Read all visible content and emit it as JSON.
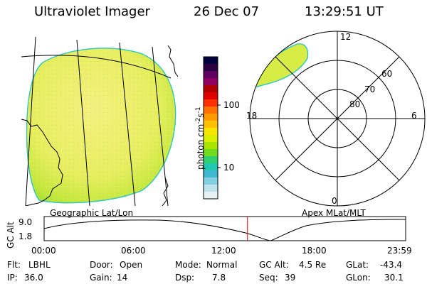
{
  "header": {
    "instrument": "Ultraviolet Imager",
    "date": "26 Dec 07",
    "time": "13:29:51 UT"
  },
  "colorbar": {
    "label": "photon cm",
    "label_sup1": "-2",
    "label_mid": "s",
    "label_sup2": "-1",
    "tick_high": "100",
    "tick_low": "10",
    "colors": [
      "#000040",
      "#2a0040",
      "#600060",
      "#900060",
      "#b00000",
      "#e00000",
      "#ff3000",
      "#ff7000",
      "#ff9a00",
      "#ffc000",
      "#f7e600",
      "#d9f000",
      "#a8e600",
      "#70dc20",
      "#30d070",
      "#20c8b0",
      "#40b8d0",
      "#80d0e0",
      "#c0e4ec",
      "#e8f2f4"
    ]
  },
  "panels": {
    "left_caption": "Geographic Lat/Lon",
    "right_caption": "Apex MLat/MLT",
    "mlt_labels": {
      "top": "12",
      "left": "18",
      "right": "6",
      "bottom": "0"
    },
    "mlat_labels": [
      "60",
      "70",
      "80"
    ]
  },
  "timeline": {
    "ylabel": "GC Alt",
    "y_high": "9.0",
    "y_low": "1.8",
    "ticks": [
      "00:00",
      "06:00",
      "12:00",
      "18:00",
      "23:59"
    ],
    "current_time_hours": 13.5
  },
  "status": {
    "flt_label": "Flt:",
    "flt_value": "LBHL",
    "ip_label": "IP:",
    "ip_value": "36.0",
    "door_label": "Door:",
    "door_value": "Open",
    "gain_label": "Gain:",
    "gain_value": "14",
    "mode_label": "Mode:",
    "mode_value": "Normal",
    "dsp_label": "Dsp:",
    "dsp_value": "7.8",
    "gcalt_label": "GC Alt:",
    "gcalt_value": "4.5 Re",
    "seq_label": "Seq:",
    "seq_value": "39",
    "glat_label": "GLat:",
    "glat_value": "-43.4",
    "glon_label": "GLon:",
    "glon_value": "30.1"
  }
}
